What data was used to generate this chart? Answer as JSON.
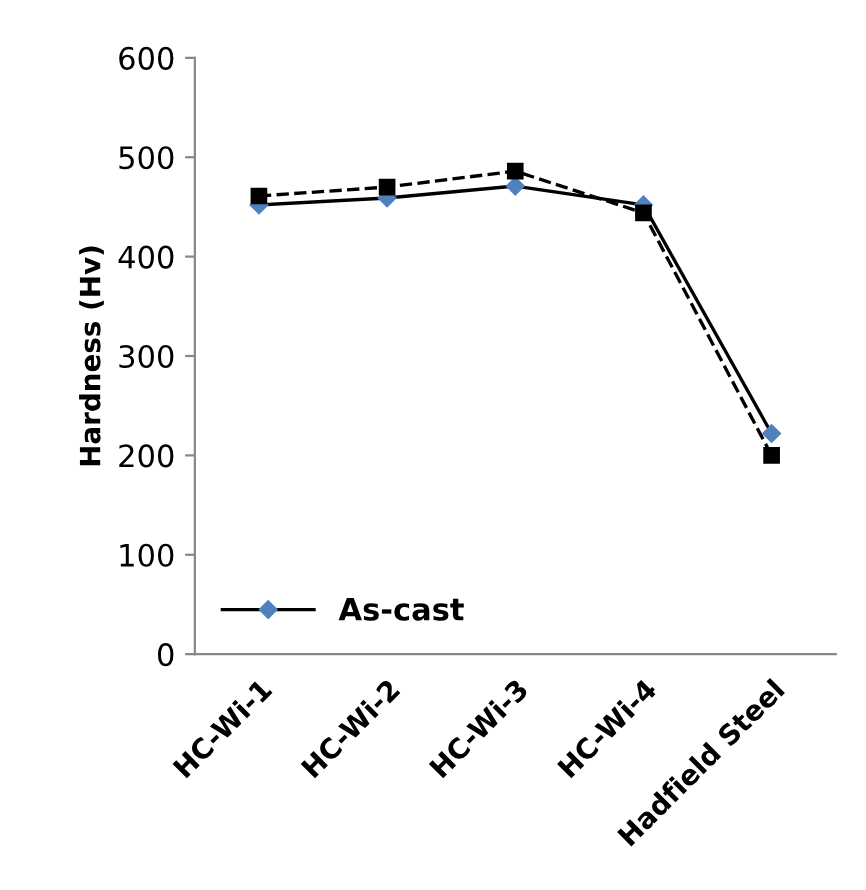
{
  "chart_data": {
    "type": "line",
    "ylabel": "Hardness (Hv)",
    "categories": [
      "HC-Wi-1",
      "HC-Wi-2",
      "HC-Wi-3",
      "HC-Wi-4",
      "Hadfield Steel"
    ],
    "series": [
      {
        "name": "As-cast",
        "color": "#4f81bd",
        "marker": "diamond",
        "line_style": "solid",
        "values": [
          452,
          459,
          471,
          452,
          222
        ]
      },
      {
        "color": "#000000",
        "marker": "square",
        "line_style": "dashed",
        "values": [
          461,
          470,
          486,
          444,
          200
        ]
      }
    ],
    "ylim": [
      0,
      600
    ],
    "yticks": [
      0,
      100,
      200,
      300,
      400,
      500,
      600
    ],
    "grid": false,
    "legend": "bottom left"
  }
}
